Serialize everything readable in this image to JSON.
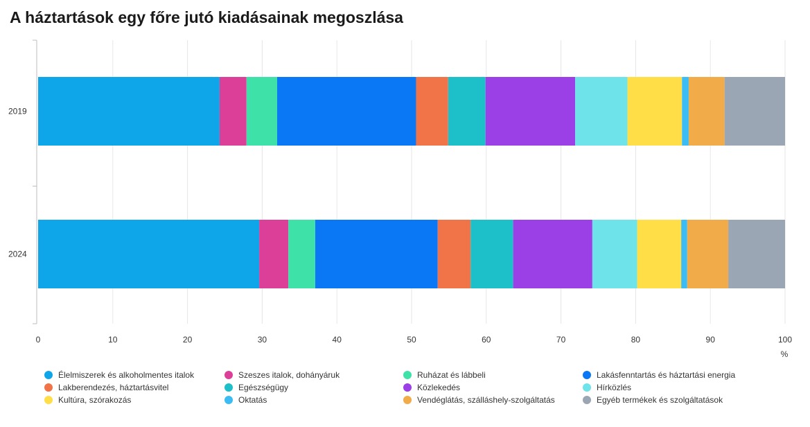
{
  "title": "A háztartások egy főre jutó kiadásainak megoszlása",
  "chart_data": {
    "type": "bar",
    "orientation": "horizontal",
    "stacked": true,
    "categories": [
      "2019",
      "2024"
    ],
    "xlabel": "%",
    "xlim": [
      0,
      100
    ],
    "xticks": [
      "0",
      "10",
      "20",
      "30",
      "40",
      "50",
      "60",
      "70",
      "80",
      "90",
      "100"
    ],
    "grid": true,
    "legend_position": "bottom",
    "series": [
      {
        "name": "Élelmiszerek és alkoholmentes italok",
        "color": "#0ea5e9",
        "values": [
          24.3,
          29.6
        ]
      },
      {
        "name": "Szeszes italok, dohányáruk",
        "color": "#db3f98",
        "values": [
          3.6,
          3.9
        ]
      },
      {
        "name": "Ruházat és lábbeli",
        "color": "#3ee2a8",
        "values": [
          4.1,
          3.6
        ]
      },
      {
        "name": "Lakásfenntartás és háztartási energia",
        "color": "#0a78f5",
        "values": [
          18.6,
          16.4
        ]
      },
      {
        "name": "Lakberendezés, háztartásvitel",
        "color": "#f17348",
        "values": [
          4.3,
          4.4
        ]
      },
      {
        "name": "Egészségügy",
        "color": "#1dc0c9",
        "values": [
          5.0,
          5.7
        ]
      },
      {
        "name": "Közlekedés",
        "color": "#9b3fe6",
        "values": [
          12.0,
          10.6
        ]
      },
      {
        "name": "Hírközlés",
        "color": "#6fe3ea",
        "values": [
          7.0,
          6.0
        ]
      },
      {
        "name": "Kultúra, szórakozás",
        "color": "#ffde47",
        "values": [
          7.3,
          5.9
        ]
      },
      {
        "name": "Oktatás",
        "color": "#3cbcf4",
        "values": [
          0.9,
          0.8
        ]
      },
      {
        "name": "Vendéglátás, szálláshely-szolgáltatás",
        "color": "#f1ab49",
        "values": [
          4.8,
          5.5
        ]
      },
      {
        "name": "Egyéb termékek és szolgáltatások",
        "color": "#9aa6b3",
        "values": [
          8.1,
          7.6
        ]
      }
    ]
  }
}
